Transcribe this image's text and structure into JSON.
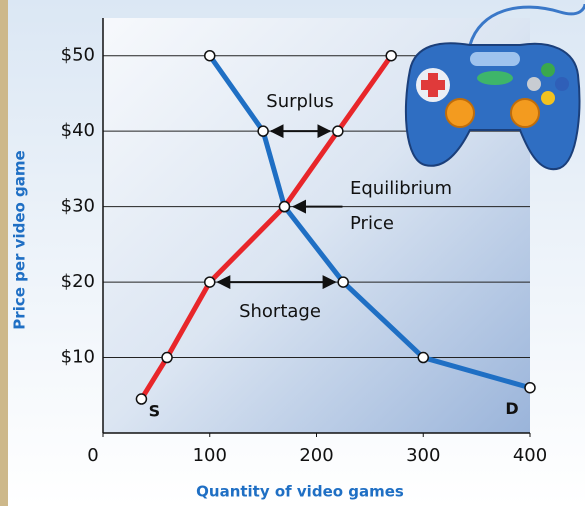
{
  "chart_data": {
    "type": "line",
    "x_label": "Quantity of video games",
    "y_label": "Price per video game",
    "xlim": [
      0,
      400
    ],
    "xticks": [
      0,
      100,
      200,
      300,
      400
    ],
    "ylim": [
      0,
      55
    ],
    "yticks": [
      {
        "value": 10,
        "label": "$10"
      },
      {
        "value": 20,
        "label": "$20"
      },
      {
        "value": 30,
        "label": "$30"
      },
      {
        "value": 40,
        "label": "$40"
      },
      {
        "value": 50,
        "label": "$50"
      }
    ],
    "grid": true,
    "series": [
      {
        "name": "S",
        "color": "#e8262a",
        "x": [
          36,
          60,
          100,
          170,
          220,
          270
        ],
        "values": [
          4.5,
          10,
          20,
          30,
          40,
          50
        ]
      },
      {
        "name": "D",
        "color": "#1f6fc4",
        "x": [
          100,
          150,
          170,
          225,
          300,
          400
        ],
        "values": [
          50,
          40,
          30,
          20,
          10,
          6
        ]
      }
    ],
    "annotations": [
      "Surplus",
      "Equilibrium",
      "Price",
      "Shortage"
    ]
  }
}
